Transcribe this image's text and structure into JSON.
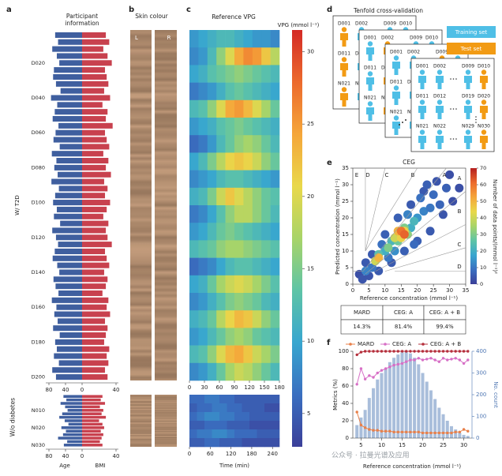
{
  "watermark": "公众号 · 拉曼光谱及应用",
  "chart_data": [
    {
      "type": "butterfly",
      "panel": "a",
      "title": "Participant information",
      "ylabel": "W/ T2D",
      "categories": [
        null,
        null,
        null,
        null,
        "D020",
        null,
        null,
        null,
        null,
        "D040",
        null,
        null,
        null,
        null,
        "D060",
        null,
        null,
        null,
        null,
        "D080",
        null,
        null,
        null,
        null,
        "D100",
        null,
        null,
        null,
        null,
        "D120",
        null,
        null,
        null,
        null,
        "D140",
        null,
        null,
        null,
        null,
        "D160",
        null,
        null,
        null,
        null,
        "D180",
        null,
        null,
        null,
        null,
        "D200"
      ],
      "series": [
        {
          "color": "#3f5f9f",
          "values": [
            65,
            58,
            72,
            61,
            55,
            68,
            70,
            63,
            52,
            75,
            60,
            66,
            71,
            57,
            64,
            69,
            54,
            73,
            62,
            67,
            59,
            74,
            56,
            65,
            70,
            61,
            68,
            53,
            72,
            63,
            58,
            66,
            71,
            60,
            55,
            69,
            64,
            57,
            73,
            62,
            67,
            59,
            70,
            54,
            65,
            61,
            68,
            56,
            72,
            63
          ]
        },
        {
          "color": "#c8414e",
          "axis": "x2",
          "values": [
            28,
            32,
            25,
            30,
            35,
            27,
            29,
            31,
            26,
            33,
            24,
            30,
            28,
            36,
            27,
            29,
            32,
            25,
            31,
            28,
            34,
            26,
            30,
            27,
            33,
            29,
            25,
            31,
            28,
            30,
            35,
            27,
            29,
            32,
            26,
            30,
            28,
            24,
            31,
            29,
            33,
            27,
            30,
            28,
            26,
            32,
            29,
            31,
            27,
            30
          ]
        }
      ],
      "xlim": [
        0,
        80
      ],
      "xticks": [
        80,
        40,
        0
      ],
      "x2lim": [
        0,
        40
      ],
      "x2ticks": [
        40
      ]
    },
    {
      "type": "butterfly",
      "ylabel": "W/o diabetes",
      "categories": [
        null,
        null,
        null,
        null,
        "N010",
        null,
        null,
        null,
        null,
        "N020",
        null,
        null,
        null,
        null,
        "N030"
      ],
      "series": [
        {
          "name": "Age",
          "color": "#3f5f9f",
          "values": [
            45,
            38,
            52,
            41,
            35,
            48,
            55,
            42,
            33,
            50,
            39,
            46,
            58,
            36,
            44
          ]
        },
        {
          "name": "BMI",
          "color": "#c8414e",
          "axis": "x2",
          "values": [
            24,
            22,
            27,
            21,
            25,
            23,
            28,
            20,
            24,
            26,
            22,
            25,
            23,
            21,
            24
          ]
        }
      ],
      "xlim": [
        0,
        80
      ],
      "xticks": [
        80,
        40,
        0
      ],
      "x2lim": [
        0,
        40
      ],
      "x2ticks": [
        40
      ]
    },
    {
      "type": "heatmap",
      "panel": "c",
      "title": "Reference VPG",
      "clabel": "VPG (mmol l⁻¹)",
      "colormap": [
        "#3b3f99",
        "#3a6fc0",
        "#38a6cf",
        "#5ec4a6",
        "#a8d468",
        "#e9d84a",
        "#f5a63a",
        "#ec6a2d",
        "#d42a26"
      ],
      "clim": [
        2.7,
        31.5
      ],
      "cticks": [
        5,
        10,
        15,
        20,
        25,
        30
      ],
      "xlim": [
        0,
        180
      ],
      "xticks": [
        0,
        30,
        60,
        90,
        120,
        150,
        180
      ],
      "values": [
        [
          9,
          10,
          11,
          12,
          12,
          11,
          10,
          9,
          9,
          8
        ],
        [
          8,
          9,
          12,
          16,
          20,
          24,
          26,
          25,
          22,
          18
        ],
        [
          10,
          11,
          13,
          14,
          15,
          16,
          15,
          14,
          13,
          12
        ],
        [
          7,
          8,
          9,
          11,
          13,
          14,
          13,
          12,
          11,
          10
        ],
        [
          12,
          13,
          16,
          20,
          24,
          25,
          23,
          20,
          17,
          14
        ],
        [
          9,
          10,
          11,
          13,
          14,
          15,
          14,
          13,
          12,
          11
        ],
        [
          6,
          7,
          9,
          12,
          14,
          16,
          17,
          16,
          14,
          12
        ],
        [
          10,
          12,
          15,
          18,
          21,
          22,
          21,
          19,
          16,
          14
        ],
        [
          8,
          9,
          10,
          12,
          13,
          13,
          12,
          11,
          10,
          9
        ],
        [
          11,
          12,
          15,
          19,
          22,
          20,
          18,
          16,
          14,
          13
        ],
        [
          7,
          8,
          10,
          13,
          16,
          18,
          18,
          16,
          14,
          12
        ],
        [
          9,
          10,
          12,
          14,
          15,
          14,
          13,
          12,
          11,
          10
        ],
        [
          12,
          13,
          14,
          16,
          17,
          17,
          16,
          15,
          14,
          13
        ],
        [
          6,
          7,
          8,
          10,
          12,
          13,
          13,
          12,
          11,
          10
        ],
        [
          10,
          11,
          14,
          17,
          19,
          20,
          19,
          17,
          15,
          13
        ],
        [
          8,
          9,
          11,
          13,
          15,
          16,
          15,
          14,
          12,
          11
        ],
        [
          11,
          12,
          14,
          18,
          21,
          23,
          22,
          19,
          16,
          14
        ],
        [
          9,
          10,
          12,
          14,
          16,
          17,
          16,
          14,
          13,
          12
        ],
        [
          12,
          13,
          16,
          20,
          23,
          24,
          22,
          19,
          17,
          15
        ],
        [
          8,
          9,
          11,
          14,
          17,
          19,
          18,
          16,
          14,
          12
        ]
      ]
    },
    {
      "type": "heatmap",
      "xlabel": "Time (min)",
      "xlim": [
        0,
        260
      ],
      "xticks": [
        0,
        60,
        120,
        180,
        240
      ],
      "values": [
        [
          6,
          6,
          7,
          7,
          6,
          6,
          5,
          5,
          5,
          5,
          5,
          5
        ],
        [
          5,
          6,
          6,
          7,
          7,
          6,
          6,
          5,
          5,
          5,
          4,
          4
        ],
        [
          6,
          7,
          8,
          8,
          7,
          7,
          6,
          6,
          5,
          5,
          5,
          5
        ],
        [
          5,
          5,
          6,
          6,
          6,
          5,
          5,
          5,
          4,
          4,
          4,
          4
        ],
        [
          6,
          7,
          7,
          8,
          8,
          7,
          6,
          6,
          6,
          5,
          5,
          5
        ],
        [
          5,
          5,
          6,
          6,
          5,
          5,
          5,
          4,
          4,
          4,
          4,
          4
        ]
      ]
    },
    {
      "type": "scatter",
      "panel": "e",
      "title": "CEG",
      "xlabel": "Reference concentration (mmol l⁻¹)",
      "ylabel": "Predicted concentration (mmol l⁻¹)",
      "xlim": [
        0,
        35
      ],
      "ylim": [
        0,
        35
      ],
      "xticks": [
        0,
        5,
        10,
        15,
        20,
        25,
        30,
        35
      ],
      "yticks": [
        0,
        5,
        10,
        15,
        20,
        25,
        30,
        35
      ],
      "x": [
        2,
        3,
        4,
        5,
        6,
        8,
        10,
        12,
        14,
        16,
        18,
        20,
        22,
        24,
        26,
        28,
        30,
        31,
        33,
        25,
        27,
        29,
        23,
        19,
        21,
        9,
        11,
        6,
        4,
        17,
        13,
        20,
        22,
        24,
        18,
        10,
        8,
        12,
        19,
        14,
        16,
        17,
        11,
        7,
        13,
        15,
        16,
        14,
        8,
        15,
        16
      ],
      "y": [
        3,
        1.5,
        6.5,
        2.5,
        9,
        4,
        15,
        6.5,
        20,
        10,
        24,
        13,
        28,
        16,
        31,
        21,
        33,
        25,
        29,
        27,
        24,
        29,
        30,
        12,
        26,
        12,
        8,
        5,
        4,
        21,
        10,
        20,
        22,
        23,
        17,
        10,
        9,
        13,
        19,
        13,
        17,
        15,
        11,
        7,
        14,
        14,
        16,
        16,
        8,
        16,
        15
      ],
      "density": [
        3,
        4,
        5,
        4,
        5,
        5,
        6,
        5,
        6,
        6,
        5,
        6,
        5,
        5,
        4,
        4,
        3,
        3,
        3,
        8,
        7,
        6,
        6,
        8,
        9,
        9,
        10,
        10,
        12,
        12,
        14,
        15,
        12,
        10,
        20,
        20,
        25,
        22,
        22,
        28,
        30,
        32,
        30,
        40,
        40,
        45,
        45,
        50,
        50,
        60,
        62
      ],
      "colormap": [
        "#3b3f99",
        "#3a6fc0",
        "#38a6cf",
        "#5ec4a6",
        "#a8d468",
        "#e9d84a",
        "#f5a63a",
        "#ec6a2d",
        "#b51f1f"
      ],
      "clim": [
        0,
        70
      ],
      "cticks": [
        0,
        10,
        20,
        30,
        40,
        50,
        60,
        70
      ],
      "clabel": "Number of data points/(mmol l⁻¹)²",
      "zone_lines": [
        [
          3.9,
          10,
          3.9,
          35
        ],
        [
          3.9,
          10,
          10,
          35
        ],
        [
          3.9,
          10,
          20,
          35
        ],
        [
          3.2,
          3.9,
          29,
          35
        ],
        [
          3.9,
          3.1,
          35,
          28
        ],
        [
          7,
          3.9,
          35,
          18
        ],
        [
          10,
          3.9,
          35,
          11
        ],
        [
          13,
          3.9,
          35,
          3.9
        ],
        [
          0,
          3.9,
          3.2,
          3.9
        ]
      ],
      "zone_labels_top": [
        "E",
        "D",
        "C",
        "B",
        "A"
      ],
      "zone_labels_right": [
        "A",
        "B",
        "C",
        "D"
      ]
    },
    {
      "type": "combo",
      "panel": "f",
      "xlabel": "Reference concentration (mmol l⁻¹)",
      "ylabel": "Metrics (%)",
      "y2label": "No. count",
      "xlim": [
        3,
        32
      ],
      "xticks": [
        5,
        10,
        15,
        20,
        25,
        30
      ],
      "ylim": [
        0,
        100
      ],
      "yticks": [
        0,
        20,
        40,
        60,
        80,
        100
      ],
      "y2lim": [
        0,
        400
      ],
      "y2ticks": [
        0,
        100,
        200,
        300,
        400
      ],
      "bins": [
        3.5,
        4.5,
        5.5,
        6.5,
        7.5,
        8.5,
        9.5,
        10.5,
        11.5,
        12.5,
        13.5,
        14.5,
        15.5,
        16.5,
        17.5,
        18.5,
        19.5,
        20.5,
        21.5,
        22.5,
        23.5,
        24.5,
        25.5,
        26.5,
        27.5,
        28.5,
        29.5,
        30.5,
        31.5
      ],
      "counts": [
        60,
        95,
        130,
        185,
        230,
        270,
        300,
        320,
        350,
        370,
        385,
        395,
        400,
        390,
        370,
        340,
        300,
        260,
        220,
        180,
        140,
        110,
        80,
        55,
        40,
        25,
        15,
        10
      ],
      "bar_color": "#a9bedb",
      "y2color": "#4f77b3",
      "x": [
        4,
        5,
        6,
        7,
        8,
        9,
        10,
        11,
        12,
        13,
        14,
        15,
        16,
        17,
        18,
        19,
        20,
        21,
        22,
        23,
        24,
        25,
        26,
        27,
        28,
        29,
        30,
        31
      ],
      "series": [
        {
          "name": "MARD",
          "color": "#e8804a",
          "values": [
            30,
            15,
            12,
            10,
            9,
            9,
            8,
            8,
            8,
            7,
            7,
            7,
            7,
            7,
            7,
            7,
            6,
            6,
            6,
            6,
            6,
            6,
            6,
            6,
            7,
            7,
            10,
            8
          ]
        },
        {
          "name": "CEG: A",
          "color": "#d770c6",
          "values": [
            62,
            80,
            68,
            72,
            70,
            75,
            78,
            80,
            82,
            84,
            85,
            86,
            88,
            90,
            90,
            92,
            90,
            91,
            92,
            90,
            88,
            92,
            90,
            91,
            92,
            90,
            86,
            90
          ]
        },
        {
          "name": "CEG: A + B",
          "color": "#b5303d",
          "values": [
            96,
            99,
            100,
            100,
            100,
            100,
            100,
            100,
            100,
            100,
            100,
            100,
            100,
            100,
            100,
            100,
            100,
            100,
            100,
            100,
            100,
            100,
            100,
            100,
            100,
            100,
            100,
            100
          ]
        }
      ]
    }
  ],
  "panel_b": {
    "panel": "b",
    "title": "Skin colour",
    "columns": [
      "L",
      "R"
    ]
  },
  "diagram": {
    "panel": "d",
    "title": "Tenfold cross-validation",
    "legend": [
      {
        "name": "Training set",
        "color": "#4fbfe6"
      },
      {
        "name": "Test set",
        "color": "#f29b14"
      }
    ],
    "ids": [
      [
        "D001",
        "D002",
        "D009",
        "D010"
      ],
      [
        "D011",
        "D012",
        "D019",
        "D020"
      ],
      [
        "N021",
        "N022",
        "N029",
        "N030"
      ]
    ],
    "folds": [
      {
        "test_column": 0
      },
      {
        "test_column": 1
      },
      {
        "test_column": 2
      },
      {
        "test_column": 3
      }
    ]
  },
  "table": {
    "header": [
      "MARD",
      "CEG: A",
      "CEG: A + B"
    ],
    "rows": [
      [
        "14.3%",
        "81.4%",
        "99.4%"
      ]
    ]
  }
}
